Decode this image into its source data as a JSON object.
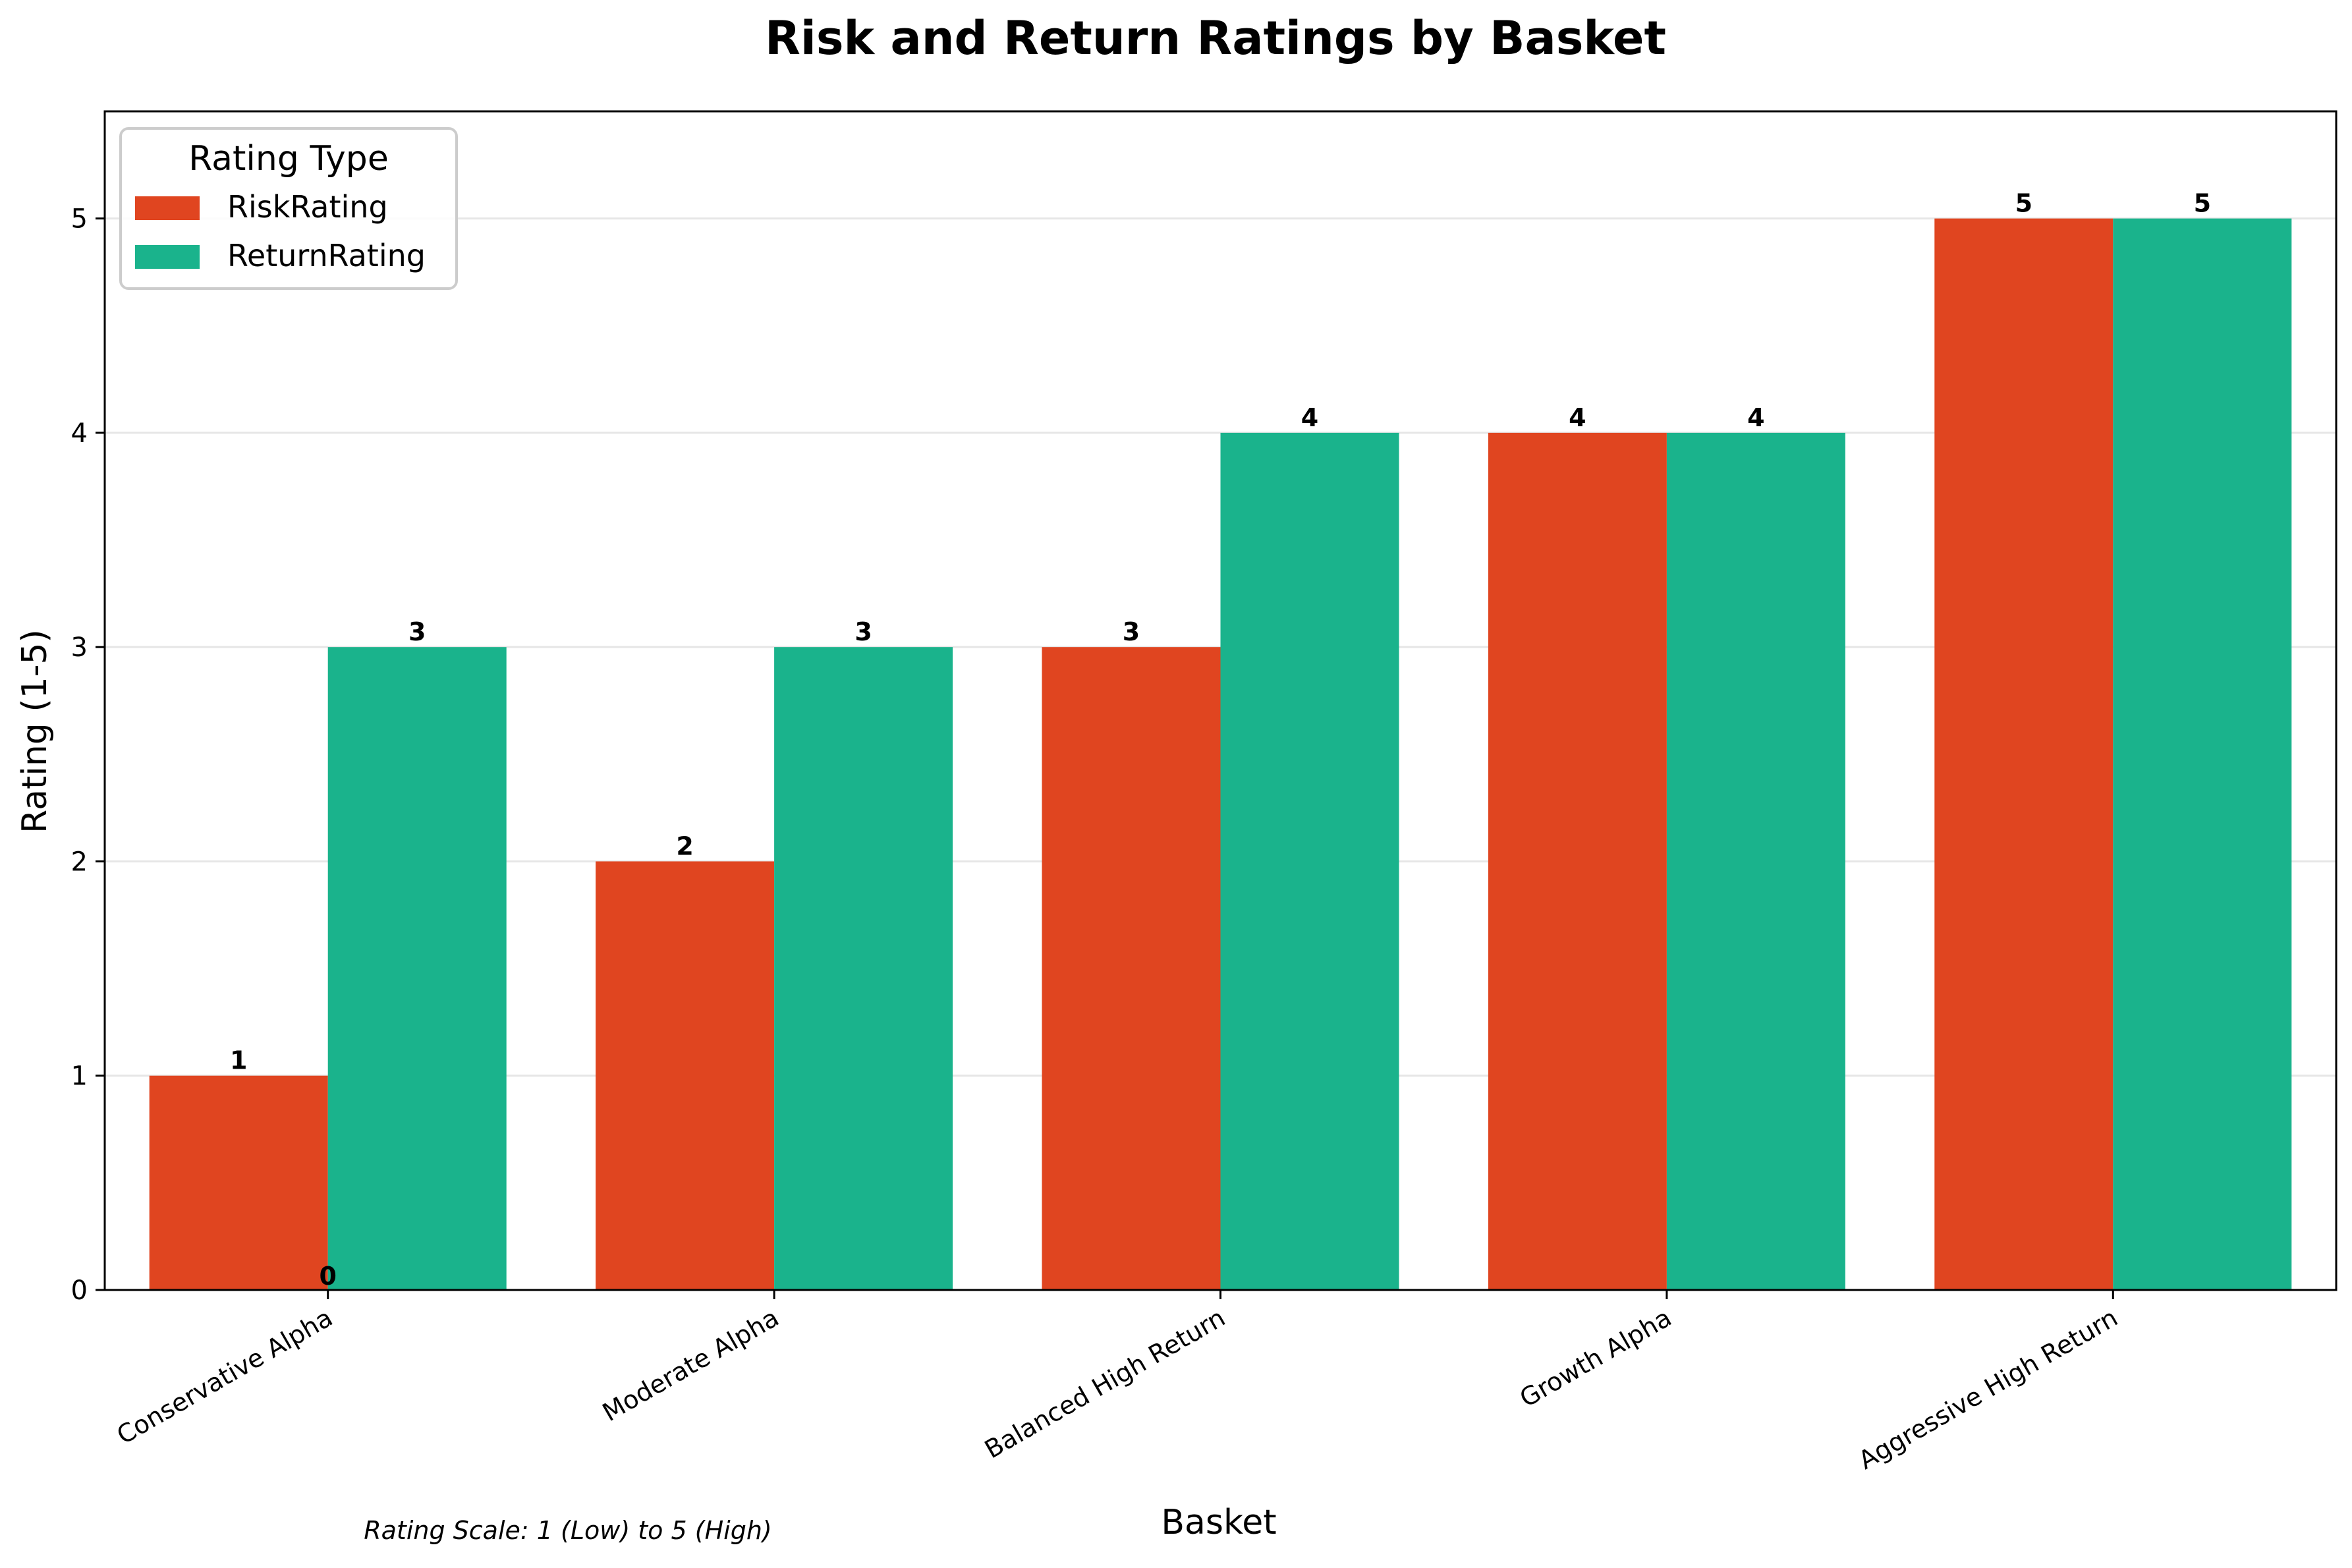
{
  "chart_data": {
    "type": "bar",
    "title": "Risk and Return Ratings by Basket",
    "xlabel": "Basket",
    "ylabel": "Rating (1-5)",
    "categories": [
      "Conservative Alpha",
      "Moderate Alpha",
      "Balanced High Return",
      "Growth Alpha",
      "Aggressive High Return"
    ],
    "series": [
      {
        "name": "RiskRating",
        "values": [
          1,
          2,
          3,
          4,
          5
        ],
        "color": "#e04520"
      },
      {
        "name": "ReturnRating",
        "values": [
          3,
          3,
          4,
          4,
          5
        ],
        "color": "#1ab38c"
      }
    ],
    "stray_label": "0",
    "ylim": [
      0,
      5.5
    ],
    "yticks": [
      "0",
      "1",
      "2",
      "3",
      "4",
      "5"
    ],
    "grid": "horizontal",
    "legend": {
      "title": "Rating Type",
      "placement": "top-left"
    },
    "footnote": "Rating Scale: 1 (Low) to 5 (High)"
  }
}
